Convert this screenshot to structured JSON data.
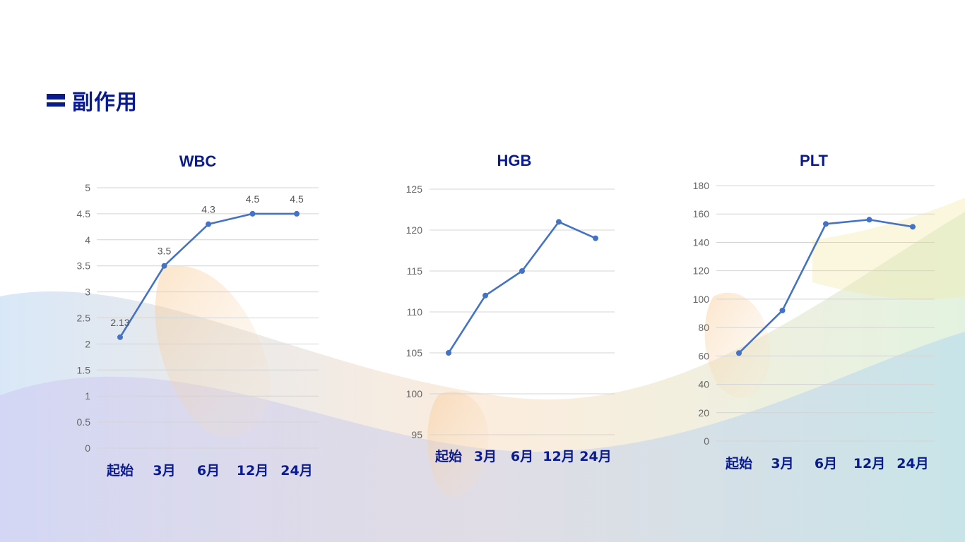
{
  "page": {
    "title": "副作用"
  },
  "chart_data": [
    {
      "type": "line",
      "title": "WBC",
      "categories": [
        "起始",
        "3月",
        "6月",
        "12月",
        "24月"
      ],
      "values": [
        2.13,
        3.5,
        4.3,
        4.5,
        4.5
      ],
      "data_labels": [
        "2.13",
        "3.5",
        "4.3",
        "4.5",
        "4.5"
      ],
      "ylim": [
        0,
        5
      ],
      "yticks": [
        0,
        0.5,
        1,
        1.5,
        2,
        2.5,
        3,
        3.5,
        4,
        4.5,
        5
      ],
      "ytick_labels": [
        "0",
        "0.5",
        "1",
        "1.5",
        "2",
        "2.5",
        "3",
        "3.5",
        "4",
        "4.5",
        "5"
      ],
      "grid": true,
      "color": "#4472c4"
    },
    {
      "type": "line",
      "title": "HGB",
      "categories": [
        "起始",
        "3月",
        "6月",
        "12月",
        "24月"
      ],
      "values": [
        105,
        112,
        115,
        121,
        119
      ],
      "ylim": [
        95,
        125
      ],
      "yticks": [
        95,
        100,
        105,
        110,
        115,
        120,
        125
      ],
      "ytick_labels": [
        "95",
        "100",
        "105",
        "110",
        "115",
        "120",
        "125"
      ],
      "grid": true,
      "color": "#4472c4"
    },
    {
      "type": "line",
      "title": "PLT",
      "categories": [
        "起始",
        "3月",
        "6月",
        "12月",
        "24月"
      ],
      "values": [
        62,
        92,
        153,
        156,
        151
      ],
      "ylim": [
        0,
        180
      ],
      "yticks": [
        0,
        20,
        40,
        60,
        80,
        100,
        120,
        140,
        160,
        180
      ],
      "ytick_labels": [
        "0",
        "20",
        "40",
        "60",
        "80",
        "100",
        "120",
        "140",
        "160",
        "180"
      ],
      "grid": true,
      "color": "#4472c4"
    }
  ]
}
